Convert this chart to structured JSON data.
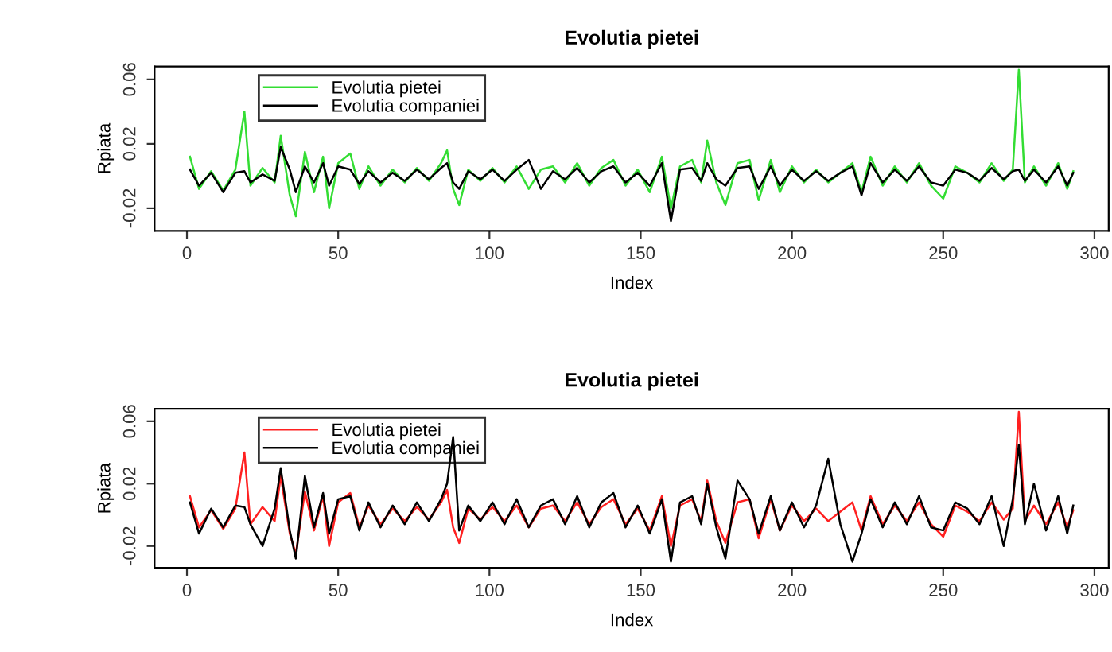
{
  "chart_data": [
    {
      "type": "line",
      "title": "Evolutia pietei",
      "xlabel": "Index",
      "ylabel": "Rpiata",
      "xlim": [
        -10.7,
        304.7
      ],
      "xticks": [
        0,
        50,
        100,
        150,
        200,
        250,
        300
      ],
      "ylim": [
        -0.034,
        0.068
      ],
      "yticks": [
        {
          "value": -0.02,
          "label": "-0.02"
        },
        {
          "value": 0.02,
          "label": "0.02"
        },
        {
          "value": 0.06,
          "label": "0.06"
        }
      ],
      "legend": "top left",
      "grid": false,
      "marker": "none",
      "line_style": "solid",
      "x": [
        1,
        4,
        8,
        12,
        16,
        19,
        21,
        25,
        29,
        31,
        34,
        36,
        39,
        42,
        45,
        47,
        50,
        54,
        57,
        60,
        64,
        68,
        72,
        76,
        80,
        84,
        86,
        88,
        90,
        93,
        97,
        101,
        105,
        109,
        113,
        117,
        121,
        125,
        129,
        133,
        137,
        141,
        145,
        149,
        153,
        157,
        160,
        163,
        167,
        170,
        172,
        175,
        178,
        182,
        186,
        189,
        193,
        196,
        200,
        204,
        208,
        212,
        216,
        220,
        223,
        226,
        230,
        234,
        238,
        242,
        246,
        250,
        254,
        258,
        262,
        266,
        270,
        273,
        275,
        277,
        280,
        284,
        288,
        291,
        293
      ],
      "series": [
        {
          "name": "Evolutia pietei",
          "color": "#33dd33",
          "values": [
            0.012,
            -0.008,
            0.003,
            -0.009,
            0.004,
            0.04,
            -0.006,
            0.005,
            -0.004,
            0.025,
            -0.012,
            -0.025,
            0.015,
            -0.01,
            0.012,
            -0.02,
            0.008,
            0.014,
            -0.008,
            0.006,
            -0.006,
            0.004,
            -0.004,
            0.005,
            -0.003,
            0.008,
            0.016,
            -0.008,
            -0.018,
            0.004,
            -0.003,
            0.005,
            -0.004,
            0.006,
            -0.008,
            0.004,
            0.006,
            -0.004,
            0.008,
            -0.006,
            0.005,
            0.01,
            -0.006,
            0.004,
            -0.01,
            0.012,
            -0.02,
            0.006,
            0.01,
            -0.004,
            0.022,
            -0.004,
            -0.018,
            0.008,
            0.01,
            -0.015,
            0.01,
            -0.01,
            0.006,
            -0.004,
            0.004,
            -0.004,
            0.002,
            0.008,
            -0.01,
            0.012,
            -0.006,
            0.006,
            -0.004,
            0.008,
            -0.006,
            -0.014,
            0.006,
            0.002,
            -0.004,
            0.008,
            -0.003,
            0.004,
            0.066,
            -0.004,
            0.006,
            -0.006,
            0.008,
            -0.008,
            0.003
          ]
        },
        {
          "name": "Evolutia companiei",
          "color": "#000000",
          "values": [
            0.004,
            -0.006,
            0.002,
            -0.01,
            0.002,
            0.003,
            -0.004,
            0.001,
            -0.003,
            0.018,
            0.004,
            -0.01,
            0.006,
            -0.004,
            0.008,
            -0.006,
            0.006,
            0.004,
            -0.005,
            0.003,
            -0.004,
            0.002,
            -0.003,
            0.004,
            -0.002,
            0.005,
            0.008,
            -0.004,
            -0.008,
            0.003,
            -0.002,
            0.004,
            -0.003,
            0.004,
            0.01,
            -0.008,
            0.003,
            -0.002,
            0.005,
            -0.004,
            0.003,
            0.006,
            -0.004,
            0.002,
            -0.006,
            0.008,
            -0.028,
            0.004,
            0.005,
            -0.003,
            0.008,
            -0.002,
            -0.006,
            0.005,
            0.006,
            -0.008,
            0.006,
            -0.006,
            0.004,
            -0.003,
            0.003,
            -0.003,
            0.002,
            0.006,
            -0.012,
            0.008,
            -0.004,
            0.004,
            -0.003,
            0.006,
            -0.004,
            -0.006,
            0.004,
            0.002,
            -0.003,
            0.005,
            -0.002,
            0.003,
            0.004,
            -0.003,
            0.004,
            -0.004,
            0.006,
            -0.006,
            0.002
          ]
        }
      ]
    },
    {
      "type": "line",
      "title": "Evolutia pietei",
      "xlabel": "Index",
      "ylabel": "Rpiata",
      "xlim": [
        -10.7,
        304.7
      ],
      "xticks": [
        0,
        50,
        100,
        150,
        200,
        250,
        300
      ],
      "ylim": [
        -0.034,
        0.068
      ],
      "yticks": [
        {
          "value": -0.02,
          "label": "-0.02"
        },
        {
          "value": 0.02,
          "label": "0.02"
        },
        {
          "value": 0.06,
          "label": "0.06"
        }
      ],
      "legend": "top left",
      "grid": false,
      "marker": "none",
      "line_style": "solid",
      "x": [
        1,
        4,
        8,
        12,
        16,
        19,
        21,
        25,
        29,
        31,
        34,
        36,
        39,
        42,
        45,
        47,
        50,
        54,
        57,
        60,
        64,
        68,
        72,
        76,
        80,
        84,
        86,
        88,
        90,
        93,
        97,
        101,
        105,
        109,
        113,
        117,
        121,
        125,
        129,
        133,
        137,
        141,
        145,
        149,
        153,
        157,
        160,
        163,
        167,
        170,
        172,
        175,
        178,
        182,
        186,
        189,
        193,
        196,
        200,
        204,
        208,
        212,
        216,
        220,
        223,
        226,
        230,
        234,
        238,
        242,
        246,
        250,
        254,
        258,
        262,
        266,
        270,
        273,
        275,
        277,
        280,
        284,
        288,
        291,
        293
      ],
      "series": [
        {
          "name": "Evolutia pietei",
          "color": "#ff2020",
          "values": [
            0.012,
            -0.008,
            0.003,
            -0.009,
            0.004,
            0.04,
            -0.006,
            0.005,
            -0.004,
            0.025,
            -0.012,
            -0.025,
            0.015,
            -0.01,
            0.012,
            -0.02,
            0.008,
            0.014,
            -0.008,
            0.006,
            -0.006,
            0.004,
            -0.004,
            0.005,
            -0.003,
            0.008,
            0.016,
            -0.008,
            -0.018,
            0.004,
            -0.003,
            0.005,
            -0.004,
            0.006,
            -0.008,
            0.004,
            0.006,
            -0.004,
            0.008,
            -0.006,
            0.005,
            0.01,
            -0.006,
            0.004,
            -0.01,
            0.012,
            -0.02,
            0.006,
            0.01,
            -0.004,
            0.022,
            -0.004,
            -0.018,
            0.008,
            0.01,
            -0.015,
            0.01,
            -0.01,
            0.006,
            -0.004,
            0.004,
            -0.004,
            0.002,
            0.008,
            -0.01,
            0.012,
            -0.006,
            0.006,
            -0.004,
            0.008,
            -0.006,
            -0.014,
            0.006,
            0.002,
            -0.004,
            0.008,
            -0.003,
            0.004,
            0.066,
            -0.004,
            0.006,
            -0.006,
            0.008,
            -0.008,
            0.003
          ]
        },
        {
          "name": "Evolutia companiei",
          "color": "#000000",
          "values": [
            0.008,
            -0.012,
            0.004,
            -0.008,
            0.006,
            0.005,
            -0.006,
            -0.02,
            0.004,
            0.03,
            -0.01,
            -0.028,
            0.025,
            -0.008,
            0.014,
            -0.012,
            0.01,
            0.012,
            -0.01,
            0.008,
            -0.008,
            0.006,
            -0.006,
            0.008,
            -0.004,
            0.01,
            0.02,
            0.05,
            -0.01,
            0.006,
            -0.004,
            0.008,
            -0.006,
            0.01,
            -0.008,
            0.006,
            0.01,
            -0.006,
            0.012,
            -0.008,
            0.008,
            0.014,
            -0.008,
            0.006,
            -0.012,
            0.01,
            -0.03,
            0.008,
            0.012,
            -0.006,
            0.02,
            -0.008,
            -0.028,
            0.022,
            0.01,
            -0.012,
            0.012,
            -0.01,
            0.008,
            -0.008,
            0.006,
            0.036,
            -0.006,
            -0.03,
            -0.012,
            0.01,
            -0.008,
            0.008,
            -0.006,
            0.012,
            -0.008,
            -0.01,
            0.008,
            0.004,
            -0.006,
            0.012,
            -0.02,
            0.01,
            0.045,
            -0.006,
            0.02,
            -0.01,
            0.012,
            -0.012,
            0.006
          ]
        }
      ]
    }
  ]
}
